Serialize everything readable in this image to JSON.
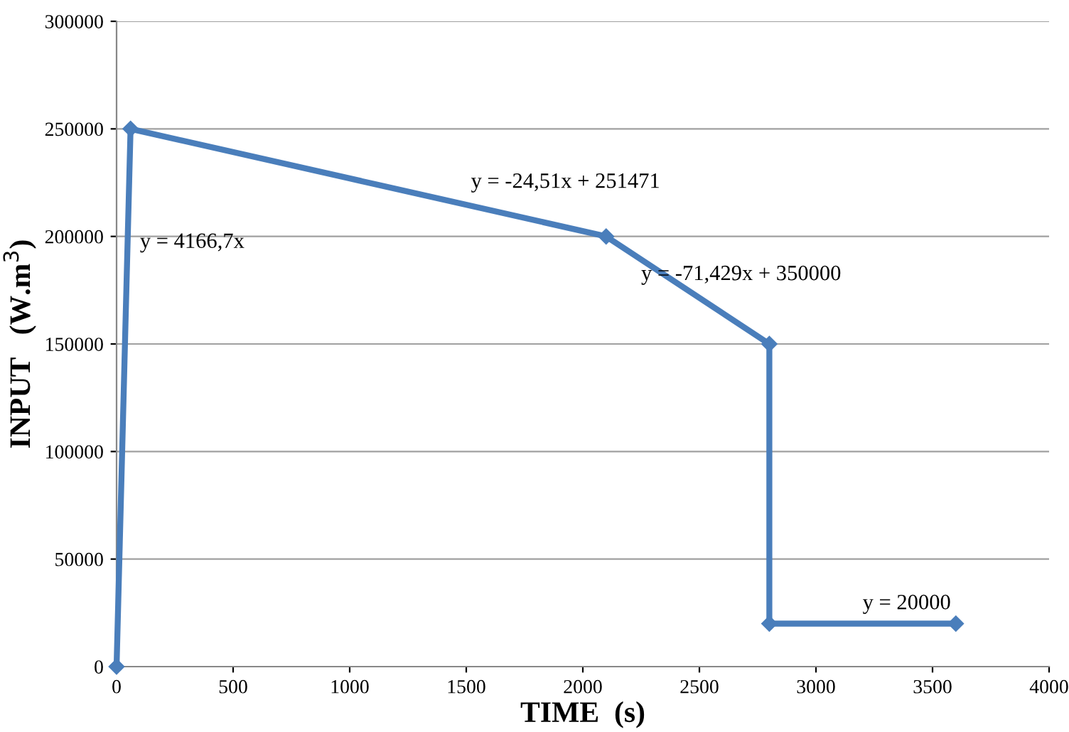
{
  "chart_data": {
    "type": "line",
    "xlabel": "TIME  (s)",
    "ylabel": "INPUT   (W.m$^{3}$)",
    "x": [
      0,
      60,
      2100,
      2800,
      2800,
      3600
    ],
    "series": [
      {
        "color": "#4a7ebb",
        "values": [
          0,
          250000,
          200000,
          150000,
          20000,
          20000
        ]
      }
    ],
    "xlim": [
      0,
      4000
    ],
    "xticks": [
      0,
      500,
      1000,
      1500,
      2000,
      2500,
      3000,
      3500,
      4000
    ],
    "ylim": [
      0,
      300000
    ],
    "yticks": [
      0,
      50000,
      100000,
      150000,
      200000,
      250000,
      300000
    ],
    "grid": "y",
    "marker": "diamond",
    "line_style": "solid",
    "legend": false,
    "annotations": [
      "y = 4166,7x",
      "y = -24,51x + 251471",
      "y = -71,429x + 350000",
      "y = 20000"
    ]
  }
}
